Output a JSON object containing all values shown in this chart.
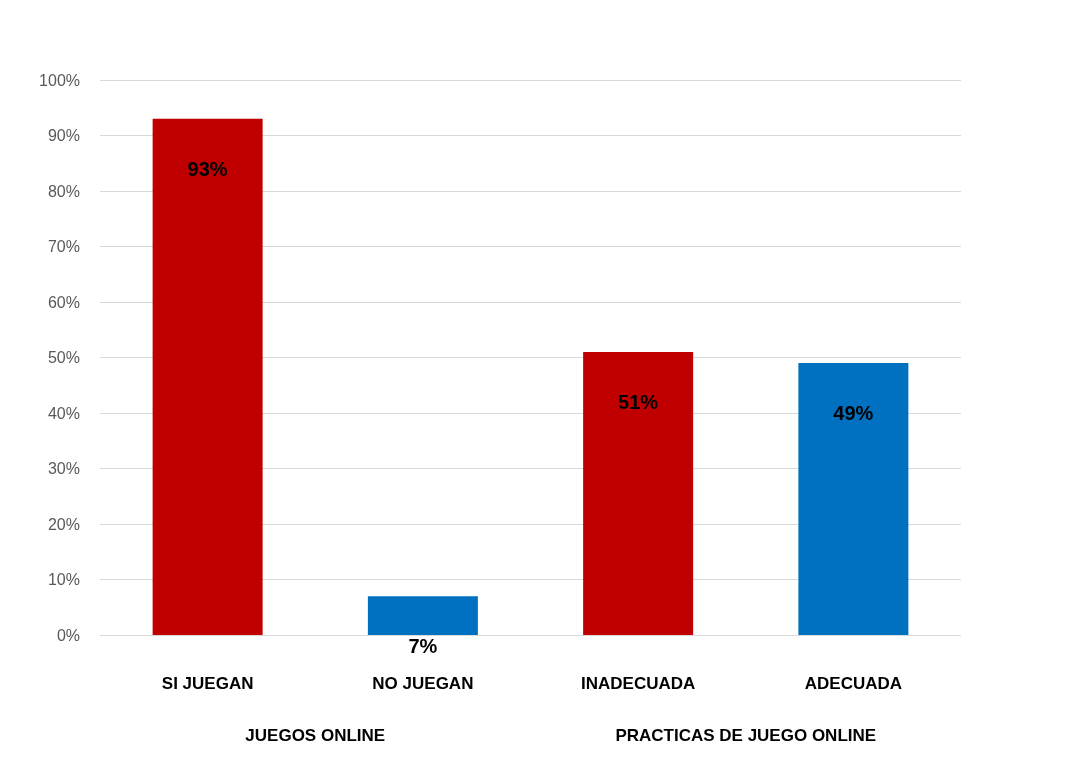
{
  "chart_data": {
    "type": "bar",
    "categories": [
      "SI JUEGAN",
      "NO JUEGAN",
      "INADECUADA",
      "ADECUADA"
    ],
    "values": [
      93,
      7,
      51,
      49
    ],
    "colors": [
      "#c00000",
      "#0070c0",
      "#c00000",
      "#0070c0"
    ],
    "value_labels": [
      "93%",
      "7%",
      "51%",
      "49%"
    ],
    "ylim": [
      0,
      100
    ],
    "yticks": [
      {
        "value": 0,
        "label": "0%"
      },
      {
        "value": 10,
        "label": "10%"
      },
      {
        "value": 20,
        "label": "20%"
      },
      {
        "value": 30,
        "label": "30%"
      },
      {
        "value": 40,
        "label": "40%"
      },
      {
        "value": 50,
        "label": "50%"
      },
      {
        "value": 60,
        "label": "60%"
      },
      {
        "value": 70,
        "label": "70%"
      },
      {
        "value": 80,
        "label": "80%"
      },
      {
        "value": 90,
        "label": "90%"
      },
      {
        "value": 100,
        "label": "100%"
      }
    ],
    "annotations": [
      "JUEGOS ONLINE",
      "PRACTICAS DE JUEGO ONLINE"
    ],
    "grid": true
  }
}
